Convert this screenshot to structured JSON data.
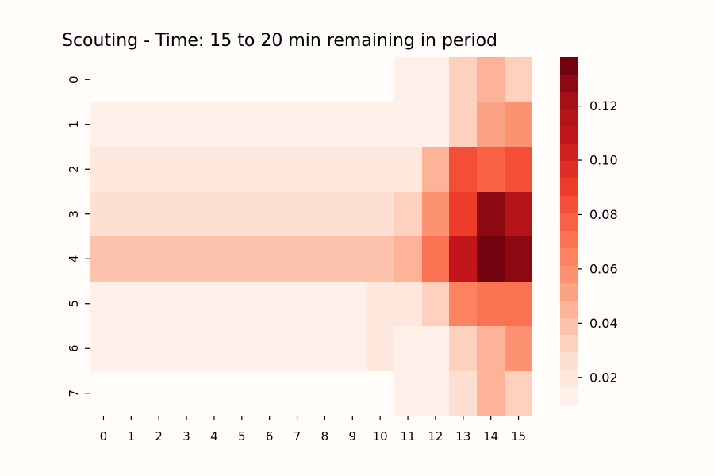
{
  "chart_data": {
    "type": "heatmap",
    "title": "Scouting - Time: 15 to 20 min remaining in period",
    "xlabel": "",
    "ylabel": "",
    "x_categories": [
      "0",
      "1",
      "2",
      "3",
      "4",
      "5",
      "6",
      "7",
      "8",
      "9",
      "10",
      "11",
      "12",
      "13",
      "14",
      "15"
    ],
    "y_categories": [
      "0",
      "1",
      "2",
      "3",
      "4",
      "5",
      "6",
      "7"
    ],
    "values": [
      [
        0.0,
        0.0,
        0.0,
        0.0,
        0.0,
        0.0,
        0.0,
        0.0,
        0.0,
        0.0,
        0.0,
        0.015,
        0.015,
        0.032,
        0.048,
        0.035
      ],
      [
        0.015,
        0.015,
        0.015,
        0.015,
        0.015,
        0.015,
        0.015,
        0.015,
        0.015,
        0.015,
        0.015,
        0.015,
        0.015,
        0.035,
        0.052,
        0.06
      ],
      [
        0.02,
        0.02,
        0.02,
        0.02,
        0.02,
        0.02,
        0.02,
        0.02,
        0.02,
        0.02,
        0.02,
        0.02,
        0.042,
        0.086,
        0.075,
        0.083
      ],
      [
        0.026,
        0.026,
        0.026,
        0.026,
        0.026,
        0.026,
        0.026,
        0.026,
        0.026,
        0.026,
        0.026,
        0.035,
        0.06,
        0.09,
        0.13,
        0.117
      ],
      [
        0.036,
        0.036,
        0.036,
        0.036,
        0.036,
        0.036,
        0.036,
        0.036,
        0.036,
        0.036,
        0.036,
        0.045,
        0.07,
        0.11,
        0.138,
        0.13
      ],
      [
        0.015,
        0.015,
        0.015,
        0.015,
        0.015,
        0.015,
        0.015,
        0.015,
        0.015,
        0.015,
        0.02,
        0.02,
        0.035,
        0.062,
        0.072,
        0.072
      ],
      [
        0.015,
        0.015,
        0.015,
        0.015,
        0.015,
        0.015,
        0.015,
        0.015,
        0.015,
        0.015,
        0.018,
        0.015,
        0.015,
        0.035,
        0.048,
        0.06
      ],
      [
        0.0,
        0.0,
        0.0,
        0.0,
        0.0,
        0.0,
        0.0,
        0.0,
        0.0,
        0.0,
        0.0,
        0.015,
        0.015,
        0.025,
        0.045,
        0.035
      ]
    ],
    "colorscale": "Reds",
    "colorbar": {
      "min": 0.01,
      "max": 0.138,
      "ticks": [
        0.02,
        0.04,
        0.06,
        0.08,
        0.1,
        0.12
      ],
      "tick_labels": [
        "0.02",
        "0.04",
        "0.06",
        "0.08",
        "0.10",
        "0.12"
      ]
    },
    "grid": false,
    "background_color": "#fffcfa"
  }
}
